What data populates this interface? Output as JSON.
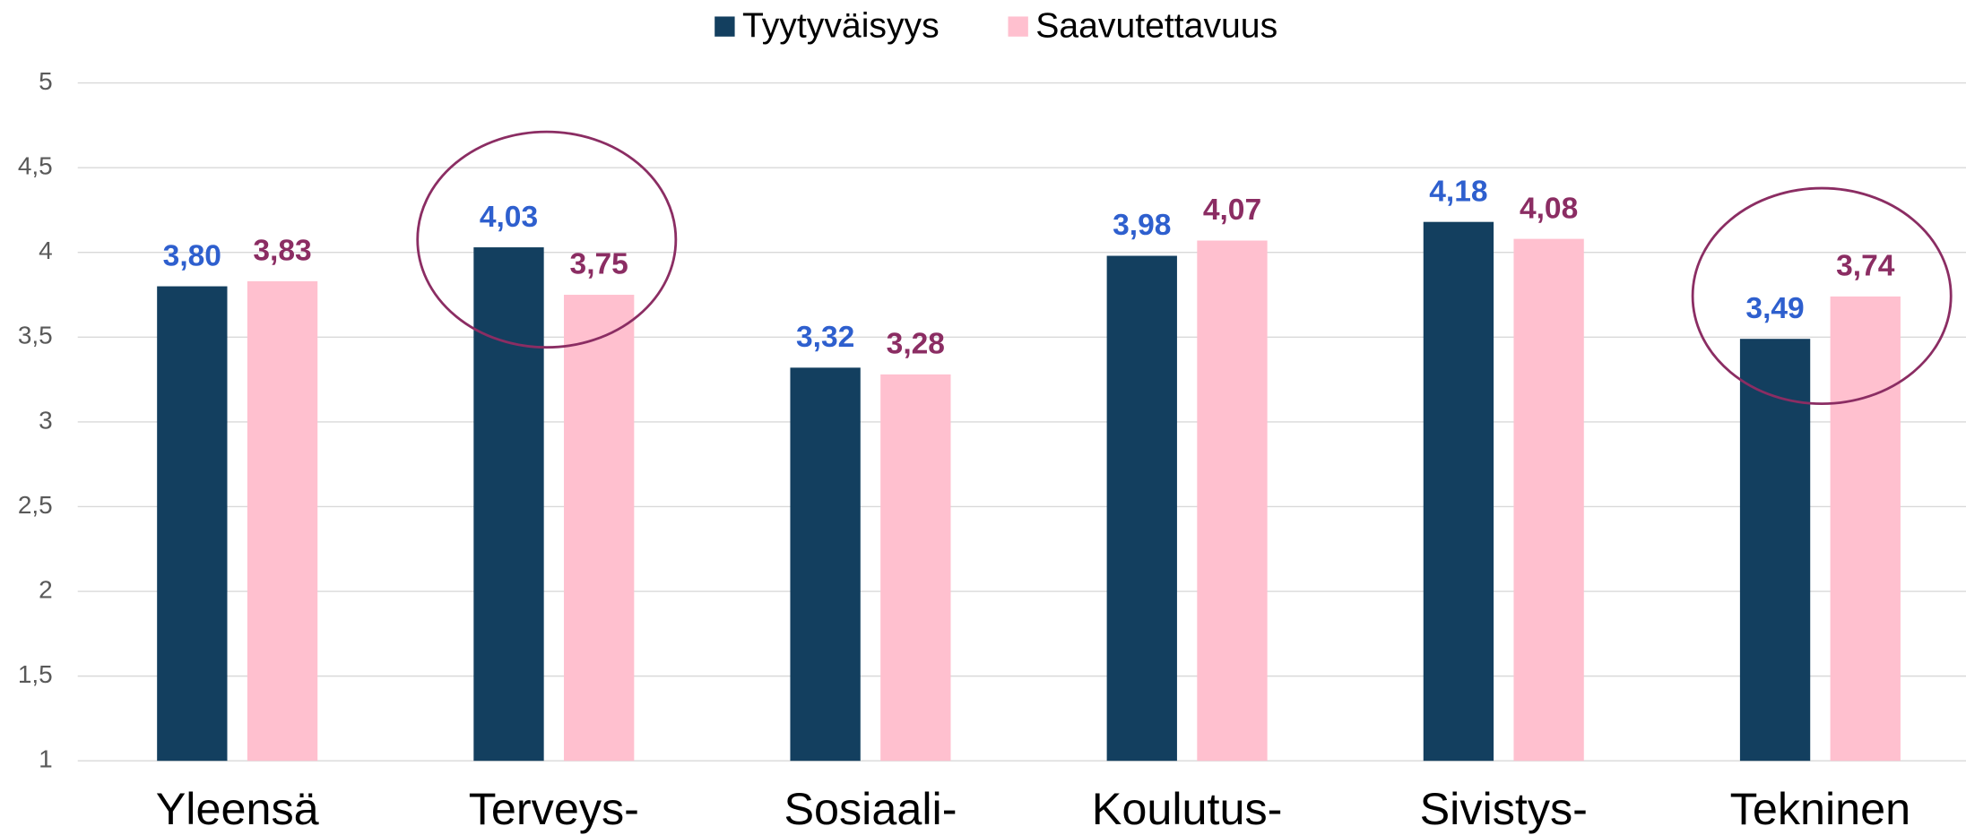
{
  "chart_data": {
    "type": "bar",
    "categories": [
      "Yleensä",
      "Terveys-",
      "Sosiaali-",
      "Koulutus-",
      "Sivistys-",
      "Tekninen"
    ],
    "series": [
      {
        "name": "Tyytyväisyys",
        "color": "#133f5f",
        "label_color": "#2e5fce",
        "values": [
          3.8,
          4.03,
          3.32,
          3.98,
          4.18,
          3.49
        ],
        "value_labels": [
          "3,80",
          "4,03",
          "3,32",
          "3,98",
          "4,18",
          "3,49"
        ]
      },
      {
        "name": "Saavutettavuus",
        "color": "#ffc0cf",
        "label_color": "#8b2d63",
        "values": [
          3.83,
          3.75,
          3.28,
          4.07,
          4.08,
          3.74
        ],
        "value_labels": [
          "3,83",
          "3,75",
          "3,28",
          "4,07",
          "4,08",
          "3,74"
        ]
      }
    ],
    "ylim": [
      1,
      5
    ],
    "yticks": [
      1,
      {
        "value": 1.5,
        "label": "1,5"
      },
      2,
      {
        "value": 2.5,
        "label": "2,5"
      },
      3,
      {
        "value": 3.5,
        "label": "3,5"
      },
      4,
      {
        "value": 4.5,
        "label": "4,5"
      },
      5
    ],
    "grid": true,
    "legend": "top"
  }
}
